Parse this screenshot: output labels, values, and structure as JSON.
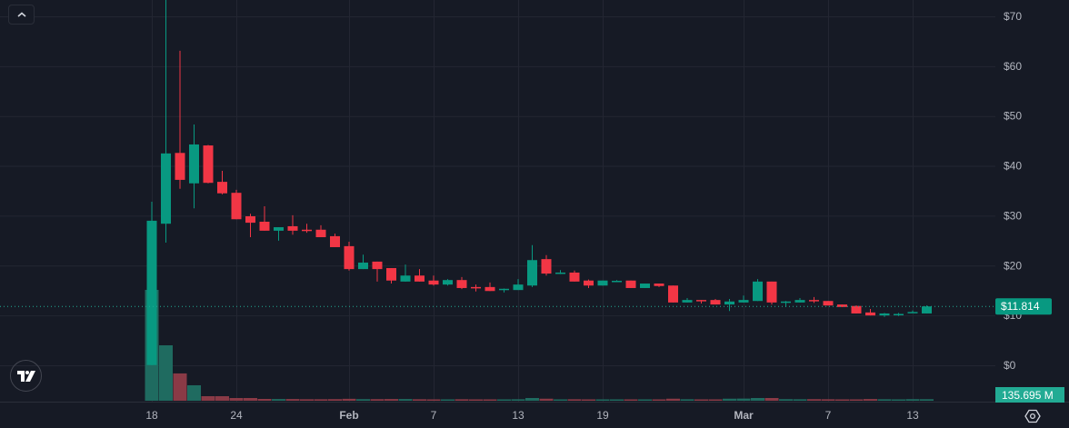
{
  "controls": {
    "collapse_icon": "chevron-up-icon",
    "logo": "TV",
    "settings_icon": "settings-icon"
  },
  "colors": {
    "background": "#161a25",
    "grid": "#232632",
    "up": "#089981",
    "down": "#f23645",
    "up_volume": "#1f6b60",
    "down_volume": "#8a3a46",
    "label_up": "#22ab94"
  },
  "chart_data": {
    "type": "candlestick",
    "title": "",
    "grid": true,
    "y_axis": {
      "ticks": [
        "$70",
        "$60",
        "$50",
        "$40",
        "$30",
        "$20",
        "$10",
        "$0"
      ],
      "tick_values": [
        70,
        60,
        50,
        40,
        30,
        20,
        10,
        0
      ],
      "range": [
        -3,
        73
      ],
      "position": "right"
    },
    "x_axis": {
      "tick_labels": [
        "18",
        "24",
        "Feb",
        "7",
        "13",
        "19",
        "Mar",
        "7",
        "13"
      ],
      "tick_indices": [
        0,
        6,
        14,
        20,
        26,
        32,
        42,
        48,
        54
      ]
    },
    "last_price": {
      "value": 11.814,
      "label": "$11.814"
    },
    "last_volume": {
      "value_millions": 135.695,
      "label": "135.695 M"
    },
    "candles": [
      {
        "d": "Jan 18",
        "o": 0.05,
        "h": 32.8,
        "l": 0.0,
        "c": 29.0,
        "v": 9740
      },
      {
        "d": "Jan 19",
        "o": 28.4,
        "h": 75.0,
        "l": 24.6,
        "c": 42.5,
        "v": 4870
      },
      {
        "d": "Jan 20",
        "o": 42.6,
        "h": 63.1,
        "l": 35.4,
        "c": 37.2,
        "v": 2400
      },
      {
        "d": "Jan 21",
        "o": 36.5,
        "h": 48.3,
        "l": 31.5,
        "c": 44.3,
        "v": 1360
      },
      {
        "d": "Jan 22",
        "o": 44.1,
        "h": 44.2,
        "l": 36.5,
        "c": 36.6,
        "v": 400
      },
      {
        "d": "Jan 23",
        "o": 36.8,
        "h": 39.0,
        "l": 34.3,
        "c": 34.5,
        "v": 400
      },
      {
        "d": "Jan 24",
        "o": 34.6,
        "h": 35.2,
        "l": 29.3,
        "c": 29.3,
        "v": 240
      },
      {
        "d": "Jan 25",
        "o": 29.9,
        "h": 30.4,
        "l": 25.7,
        "c": 28.6,
        "v": 240
      },
      {
        "d": "Jan 26",
        "o": 28.8,
        "h": 31.9,
        "l": 27.0,
        "c": 27.0,
        "v": 160
      },
      {
        "d": "Jan 27",
        "o": 27.0,
        "h": 27.7,
        "l": 25.0,
        "c": 27.7,
        "v": 150
      },
      {
        "d": "Jan 28",
        "o": 27.9,
        "h": 30.1,
        "l": 26.2,
        "c": 27.0,
        "v": 150
      },
      {
        "d": "Jan 29",
        "o": 27.2,
        "h": 28.4,
        "l": 26.6,
        "c": 27.1,
        "v": 130
      },
      {
        "d": "Jan 30",
        "o": 27.2,
        "h": 28.1,
        "l": 25.7,
        "c": 25.7,
        "v": 130
      },
      {
        "d": "Jan 31",
        "o": 25.9,
        "h": 26.4,
        "l": 23.7,
        "c": 23.7,
        "v": 140
      },
      {
        "d": "Feb 1",
        "o": 23.9,
        "h": 24.8,
        "l": 19.0,
        "c": 19.3,
        "v": 170
      },
      {
        "d": "Feb 2",
        "o": 19.3,
        "h": 22.2,
        "l": 19.3,
        "c": 20.6,
        "v": 140
      },
      {
        "d": "Feb 3",
        "o": 20.8,
        "h": 20.8,
        "l": 16.8,
        "c": 19.3,
        "v": 140
      },
      {
        "d": "Feb 4",
        "o": 19.5,
        "h": 19.5,
        "l": 16.4,
        "c": 17.0,
        "v": 150
      },
      {
        "d": "Feb 5",
        "o": 16.8,
        "h": 20.2,
        "l": 16.8,
        "c": 18.0,
        "v": 150
      },
      {
        "d": "Feb 6",
        "o": 18.0,
        "h": 19.3,
        "l": 16.8,
        "c": 16.8,
        "v": 130
      },
      {
        "d": "Feb 7",
        "o": 17.0,
        "h": 18.0,
        "l": 16.0,
        "c": 16.2,
        "v": 120
      },
      {
        "d": "Feb 8",
        "o": 16.2,
        "h": 17.3,
        "l": 16.0,
        "c": 17.1,
        "v": 120
      },
      {
        "d": "Feb 9",
        "o": 17.1,
        "h": 17.7,
        "l": 15.3,
        "c": 15.5,
        "v": 130
      },
      {
        "d": "Feb 10",
        "o": 15.7,
        "h": 16.2,
        "l": 14.8,
        "c": 15.6,
        "v": 110
      },
      {
        "d": "Feb 11",
        "o": 15.7,
        "h": 16.6,
        "l": 14.9,
        "c": 14.9,
        "v": 110
      },
      {
        "d": "Feb 12",
        "o": 15.3,
        "h": 15.4,
        "l": 14.6,
        "c": 15.35,
        "v": 100
      },
      {
        "d": "Feb 13",
        "o": 15.1,
        "h": 17.3,
        "l": 15.1,
        "c": 16.2,
        "v": 130
      },
      {
        "d": "Feb 14",
        "o": 16.0,
        "h": 24.1,
        "l": 15.7,
        "c": 21.1,
        "v": 240
      },
      {
        "d": "Feb 15",
        "o": 21.3,
        "h": 22.1,
        "l": 18.0,
        "c": 18.4,
        "v": 180
      },
      {
        "d": "Feb 16",
        "o": 18.5,
        "h": 19.1,
        "l": 18.3,
        "c": 18.6,
        "v": 120
      },
      {
        "d": "Feb 17",
        "o": 18.6,
        "h": 19.0,
        "l": 16.8,
        "c": 16.8,
        "v": 130
      },
      {
        "d": "Feb 18",
        "o": 17.0,
        "h": 17.2,
        "l": 15.5,
        "c": 16.0,
        "v": 120
      },
      {
        "d": "Feb 19",
        "o": 16.0,
        "h": 17.0,
        "l": 16.0,
        "c": 17.0,
        "v": 110
      },
      {
        "d": "Feb 20",
        "o": 16.9,
        "h": 17.1,
        "l": 16.7,
        "c": 16.95,
        "v": 100
      },
      {
        "d": "Feb 21",
        "o": 17.0,
        "h": 17.0,
        "l": 15.5,
        "c": 15.5,
        "v": 110
      },
      {
        "d": "Feb 22",
        "o": 15.5,
        "h": 16.4,
        "l": 15.5,
        "c": 16.4,
        "v": 110
      },
      {
        "d": "Feb 23",
        "o": 16.4,
        "h": 16.4,
        "l": 15.7,
        "c": 15.9,
        "v": 100
      },
      {
        "d": "Feb 24",
        "o": 16.0,
        "h": 16.0,
        "l": 12.6,
        "c": 12.6,
        "v": 180
      },
      {
        "d": "Feb 25",
        "o": 12.6,
        "h": 13.5,
        "l": 12.6,
        "c": 13.1,
        "v": 130
      },
      {
        "d": "Feb 26",
        "o": 13.1,
        "h": 13.1,
        "l": 12.4,
        "c": 12.9,
        "v": 120
      },
      {
        "d": "Feb 27",
        "o": 13.1,
        "h": 13.3,
        "l": 12.2,
        "c": 12.2,
        "v": 110
      },
      {
        "d": "Feb 28",
        "o": 12.2,
        "h": 13.3,
        "l": 10.9,
        "c": 12.8,
        "v": 180
      },
      {
        "d": "Mar 1",
        "o": 12.6,
        "h": 14.0,
        "l": 12.6,
        "c": 13.1,
        "v": 190
      },
      {
        "d": "Mar 2",
        "o": 12.9,
        "h": 17.3,
        "l": 12.9,
        "c": 16.8,
        "v": 240
      },
      {
        "d": "Mar 3",
        "o": 16.8,
        "h": 16.8,
        "l": 12.2,
        "c": 12.6,
        "v": 240
      },
      {
        "d": "Mar 4",
        "o": 12.75,
        "h": 12.9,
        "l": 11.7,
        "c": 12.8,
        "v": 140
      },
      {
        "d": "Mar 5",
        "o": 12.6,
        "h": 13.5,
        "l": 12.6,
        "c": 13.1,
        "v": 130
      },
      {
        "d": "Mar 6",
        "o": 13.1,
        "h": 13.7,
        "l": 12.5,
        "c": 12.9,
        "v": 140
      },
      {
        "d": "Mar 7",
        "o": 12.9,
        "h": 12.9,
        "l": 12.0,
        "c": 12.0,
        "v": 130
      },
      {
        "d": "Mar 8",
        "o": 12.2,
        "h": 12.2,
        "l": 11.7,
        "c": 11.7,
        "v": 100
      },
      {
        "d": "Mar 9",
        "o": 11.9,
        "h": 12.0,
        "l": 10.4,
        "c": 10.4,
        "v": 100
      },
      {
        "d": "Mar 10",
        "o": 10.6,
        "h": 11.3,
        "l": 10.0,
        "c": 10.0,
        "v": 150
      },
      {
        "d": "Mar 11",
        "o": 10.0,
        "h": 10.5,
        "l": 9.7,
        "c": 10.4,
        "v": 130
      },
      {
        "d": "Mar 12",
        "o": 10.2,
        "h": 10.5,
        "l": 9.9,
        "c": 10.3,
        "v": 70
      },
      {
        "d": "Mar 13",
        "o": 10.5,
        "h": 11.0,
        "l": 10.5,
        "c": 10.7,
        "v": 140
      },
      {
        "d": "Mar 14",
        "o": 10.4,
        "h": 12.0,
        "l": 10.4,
        "c": 11.814,
        "v": 135.695
      }
    ]
  }
}
